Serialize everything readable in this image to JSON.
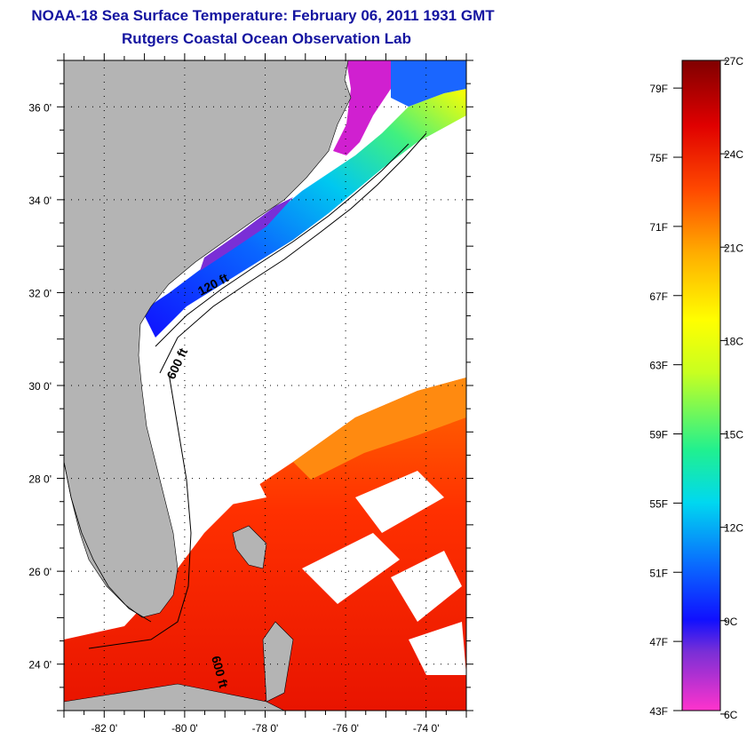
{
  "title": {
    "line1": "NOAA-18 Sea Surface Temperature:  February 06, 2011 1931 GMT",
    "line2": "Rutgers Coastal Ocean Observation Lab"
  },
  "map": {
    "lon_range": [
      -83,
      -73
    ],
    "lat_range": [
      23,
      37
    ],
    "lat_ticks": [
      {
        "value": 36,
        "label": "36 0'"
      },
      {
        "value": 34,
        "label": "34 0'"
      },
      {
        "value": 32,
        "label": "32 0'"
      },
      {
        "value": 30,
        "label": "30 0'"
      },
      {
        "value": 28,
        "label": "28 0'"
      },
      {
        "value": 26,
        "label": "26 0'"
      },
      {
        "value": 24,
        "label": "24 0'"
      }
    ],
    "lon_ticks": [
      {
        "value": -82,
        "label": "-82 0'"
      },
      {
        "value": -80,
        "label": "-80 0'"
      },
      {
        "value": -78,
        "label": "-78 0'"
      },
      {
        "value": -76,
        "label": "-76 0'"
      },
      {
        "value": -74,
        "label": "-74 0'"
      }
    ],
    "grid": "dotted",
    "contour_labels": [
      "120 ft",
      "600 ft",
      "600 ft"
    ],
    "colors": {
      "land": "#b4b4b4",
      "cloud": "#ffffff",
      "grid": "#000000"
    }
  },
  "colorbar": {
    "min_f": 43,
    "max_f": 80.6,
    "left_labels": [
      "79F",
      "75F",
      "71F",
      "67F",
      "63F",
      "59F",
      "55F",
      "51F",
      "47F",
      "43F"
    ],
    "right_labels": [
      "27C",
      "24C",
      "21C",
      "18C",
      "15C",
      "12C",
      "9C",
      "6C"
    ],
    "stops": [
      {
        "t": 0.0,
        "color": "#ff33cc"
      },
      {
        "t": 0.09,
        "color": "#7a2fd6"
      },
      {
        "t": 0.14,
        "color": "#1010ff"
      },
      {
        "t": 0.22,
        "color": "#0a66ff"
      },
      {
        "t": 0.32,
        "color": "#00d8f0"
      },
      {
        "t": 0.4,
        "color": "#20f090"
      },
      {
        "t": 0.52,
        "color": "#c8ff20"
      },
      {
        "t": 0.6,
        "color": "#ffff00"
      },
      {
        "t": 0.7,
        "color": "#ffb000"
      },
      {
        "t": 0.8,
        "color": "#ff4a00"
      },
      {
        "t": 0.9,
        "color": "#e00000"
      },
      {
        "t": 1.0,
        "color": "#800000"
      }
    ]
  }
}
